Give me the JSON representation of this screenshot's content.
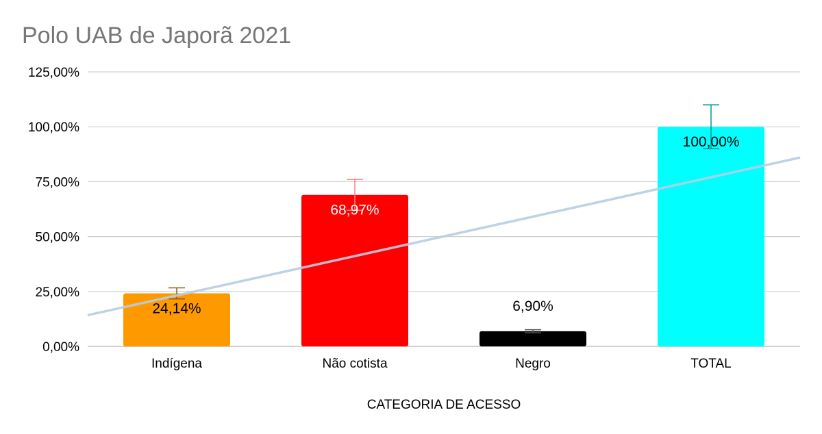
{
  "chart_data": {
    "type": "bar",
    "title": "Polo UAB de Japorã 2021",
    "xlabel": "CATEGORIA DE ACESSO",
    "ylabel": "",
    "categories": [
      "Indígena",
      "Não cotista",
      "Negro",
      "TOTAL"
    ],
    "values": [
      24.14,
      68.97,
      6.9,
      100.0
    ],
    "value_labels": [
      "24,14%",
      "68,97%",
      "6,90%",
      "100,00%"
    ],
    "error_upper": [
      2.5,
      7.0,
      0.7,
      10.0
    ],
    "error_lower": [
      2.5,
      7.0,
      0.7,
      10.0
    ],
    "colors": [
      "#ff9900",
      "#ff0000",
      "#000000",
      "#00ffff"
    ],
    "error_colors": [
      "#8a5a1e",
      "#ff8080",
      "#555555",
      "#009999"
    ],
    "label_colors": [
      "#000000",
      "#ffffff",
      "#000000",
      "#000000"
    ],
    "label_position": [
      "inside",
      "inside",
      "above",
      "inside"
    ],
    "ylim": [
      0,
      125
    ],
    "yticks": [
      0,
      25,
      50,
      75,
      100,
      125
    ],
    "ytick_labels": [
      "0,00%",
      "25,00%",
      "50,00%",
      "75,00%",
      "100,00%",
      "125,00%"
    ],
    "grid": true,
    "trendline": {
      "type": "linear",
      "color": "#b7cde3",
      "start_value": 14.2,
      "end_value": 86.0
    }
  }
}
